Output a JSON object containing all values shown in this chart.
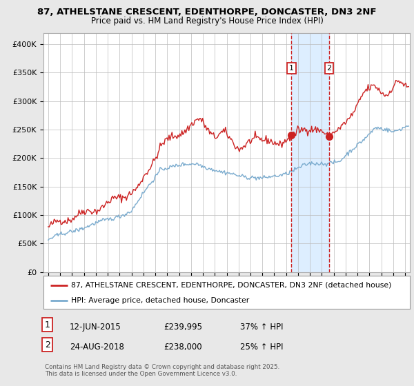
{
  "title_line1": "87, ATHELSTANE CRESCENT, EDENTHORPE, DONCASTER, DN3 2NF",
  "title_line2": "Price paid vs. HM Land Registry's House Price Index (HPI)",
  "legend_line1": "87, ATHELSTANE CRESCENT, EDENTHORPE, DONCASTER, DN3 2NF (detached house)",
  "legend_line2": "HPI: Average price, detached house, Doncaster",
  "annotation1_date": "12-JUN-2015",
  "annotation1_price": "£239,995",
  "annotation1_hpi": "37% ↑ HPI",
  "annotation2_date": "24-AUG-2018",
  "annotation2_price": "£238,000",
  "annotation2_hpi": "25% ↑ HPI",
  "copyright": "Contains HM Land Registry data © Crown copyright and database right 2025.\nThis data is licensed under the Open Government Licence v3.0.",
  "ylim": [
    0,
    420000
  ],
  "yticks": [
    0,
    50000,
    100000,
    150000,
    200000,
    250000,
    300000,
    350000,
    400000
  ],
  "red_color": "#cc2222",
  "blue_color": "#7aabce",
  "shade_color": "#ddeeff",
  "vline_color": "#cc2222",
  "background_color": "#e8e8e8",
  "plot_bg_color": "#ffffff",
  "x_sale1": 2015.45,
  "x_sale2": 2018.62,
  "y_sale1": 240000,
  "y_sale2": 238000,
  "xlim_left": 1994.6,
  "xlim_right": 2025.4
}
